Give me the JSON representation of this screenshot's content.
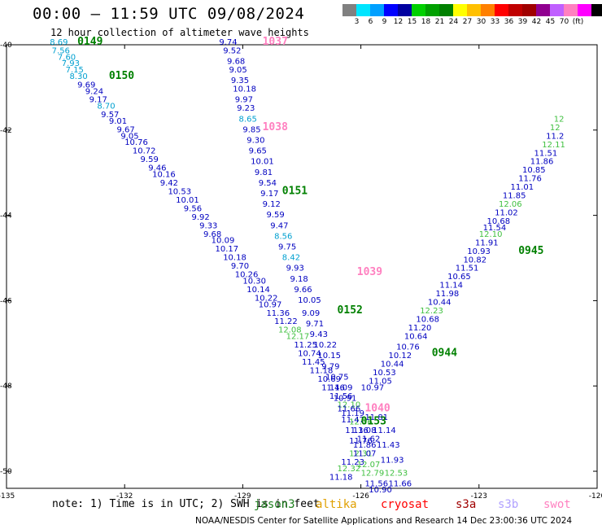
{
  "title": "00:00 – 11:59 UTC 09/08/2024",
  "subtitle": "12 hour collection of altimeter wave heights",
  "scale": {
    "unit": "(ft)",
    "colors": [
      "#808080",
      "#00e5ff",
      "#00a0ff",
      "#0000ff",
      "#0000a0",
      "#00d000",
      "#00a000",
      "#008000",
      "#ffff00",
      "#ffc000",
      "#ff8000",
      "#ff0000",
      "#c00000",
      "#a00000",
      "#900090",
      "#c060ff",
      "#ff80c0",
      "#ff00ff",
      "#000000"
    ],
    "labels": [
      "3",
      "6",
      "9",
      "12",
      "15",
      "18",
      "21",
      "24",
      "27",
      "30",
      "33",
      "36",
      "39",
      "42",
      "45",
      "70",
      "(ft)"
    ]
  },
  "axes": {
    "lat_ticks": [
      "-40",
      "-42",
      "-44",
      "-46",
      "-48",
      "-50"
    ],
    "lon_ticks": [
      "-135",
      "-132",
      "-129",
      "-126",
      "-123",
      "-120"
    ]
  },
  "tracks": [
    {
      "pass": "0149",
      "lon": -133.2,
      "lat": -40.0
    },
    {
      "pass": "0150",
      "lon": -132.4,
      "lat": -40.8
    },
    {
      "pass": "0151",
      "lon": -128.0,
      "lat": -43.5
    },
    {
      "pass": "0152",
      "lon": -126.6,
      "lat": -46.3
    },
    {
      "pass": "1037",
      "lon": -128.5,
      "lat": -40.0
    },
    {
      "pass": "1038",
      "lon": -128.5,
      "lat": -42.0
    },
    {
      "pass": "1039",
      "lon": -126.1,
      "lat": -45.4
    },
    {
      "pass": "1040",
      "lon": -125.9,
      "lat": -48.6
    },
    {
      "pass": "0153",
      "lon": -126.0,
      "lat": -48.9
    },
    {
      "pass": "0944",
      "lon": -124.2,
      "lat": -47.3
    },
    {
      "pass": "0945",
      "lon": -122.0,
      "lat": -44.9
    }
  ],
  "values": [
    {
      "t": "8.69",
      "lon": -133.9,
      "lat": -40.0,
      "c": "#00a0d0"
    },
    {
      "t": "7.56",
      "lon": -133.85,
      "lat": -40.2,
      "c": "#00a0d0"
    },
    {
      "t": "7.60",
      "lon": -133.7,
      "lat": -40.35,
      "c": "#00a0d0"
    },
    {
      "t": "7.93",
      "lon": -133.6,
      "lat": -40.5,
      "c": "#00a0d0"
    },
    {
      "t": "7.15",
      "lon": -133.5,
      "lat": -40.65,
      "c": "#00a0d0"
    },
    {
      "t": "8.30",
      "lon": -133.4,
      "lat": -40.8,
      "c": "#00a0d0"
    },
    {
      "t": "9.69",
      "lon": -133.2,
      "lat": -41.0,
      "c": "#0000c0"
    },
    {
      "t": "9.24",
      "lon": -133.0,
      "lat": -41.15,
      "c": "#0000c0"
    },
    {
      "t": "9.17",
      "lon": -132.9,
      "lat": -41.35,
      "c": "#0000c0"
    },
    {
      "t": "8.70",
      "lon": -132.7,
      "lat": -41.5,
      "c": "#00a0d0"
    },
    {
      "t": "9.57",
      "lon": -132.6,
      "lat": -41.7,
      "c": "#0000c0"
    },
    {
      "t": "9.01",
      "lon": -132.4,
      "lat": -41.85,
      "c": "#0000c0"
    },
    {
      "t": "9.67",
      "lon": -132.2,
      "lat": -42.05,
      "c": "#0000c0"
    },
    {
      "t": "9.05",
      "lon": -132.1,
      "lat": -42.2,
      "c": "#0000c0"
    },
    {
      "t": "10.76",
      "lon": -132.0,
      "lat": -42.35,
      "c": "#0000c0"
    },
    {
      "t": "10.72",
      "lon": -131.8,
      "lat": -42.55,
      "c": "#0000c0"
    },
    {
      "t": "9.59",
      "lon": -131.6,
      "lat": -42.75,
      "c": "#0000c0"
    },
    {
      "t": "9.46",
      "lon": -131.4,
      "lat": -42.95,
      "c": "#0000c0"
    },
    {
      "t": "10.16",
      "lon": -131.3,
      "lat": -43.1,
      "c": "#0000c0"
    },
    {
      "t": "9.42",
      "lon": -131.1,
      "lat": -43.3,
      "c": "#0000c0"
    },
    {
      "t": "10.53",
      "lon": -130.9,
      "lat": -43.5,
      "c": "#0000c0"
    },
    {
      "t": "10.01",
      "lon": -130.7,
      "lat": -43.7,
      "c": "#0000c0"
    },
    {
      "t": "9.56",
      "lon": -130.5,
      "lat": -43.9,
      "c": "#0000c0"
    },
    {
      "t": "9.92",
      "lon": -130.3,
      "lat": -44.1,
      "c": "#0000c0"
    },
    {
      "t": "9.33",
      "lon": -130.1,
      "lat": -44.3,
      "c": "#0000c0"
    },
    {
      "t": "9.68",
      "lon": -130.0,
      "lat": -44.5,
      "c": "#0000c0"
    },
    {
      "t": "10.09",
      "lon": -129.8,
      "lat": -44.65,
      "c": "#0000c0"
    },
    {
      "t": "10.17",
      "lon": -129.7,
      "lat": -44.85,
      "c": "#0000c0"
    },
    {
      "t": "10.18",
      "lon": -129.5,
      "lat": -45.05,
      "c": "#0000c0"
    },
    {
      "t": "9.70",
      "lon": -129.3,
      "lat": -45.25,
      "c": "#0000c0"
    },
    {
      "t": "10.26",
      "lon": -129.2,
      "lat": -45.45,
      "c": "#0000c0"
    },
    {
      "t": "10.30",
      "lon": -129.0,
      "lat": -45.6,
      "c": "#0000c0"
    },
    {
      "t": "10.14",
      "lon": -128.9,
      "lat": -45.8,
      "c": "#0000c0"
    },
    {
      "t": "10.22",
      "lon": -128.7,
      "lat": -46.0,
      "c": "#0000c0"
    },
    {
      "t": "10.97",
      "lon": -128.6,
      "lat": -46.15,
      "c": "#0000c0"
    },
    {
      "t": "11.36",
      "lon": -128.4,
      "lat": -46.35,
      "c": "#0000c0"
    },
    {
      "t": "11.22",
      "lon": -128.2,
      "lat": -46.55,
      "c": "#0000c0"
    },
    {
      "t": "12.08",
      "lon": -128.1,
      "lat": -46.75,
      "c": "#40c040"
    },
    {
      "t": "12.17",
      "lon": -127.9,
      "lat": -46.9,
      "c": "#40c040"
    },
    {
      "t": "11.25",
      "lon": -127.7,
      "lat": -47.1,
      "c": "#0000c0"
    },
    {
      "t": "10.74",
      "lon": -127.6,
      "lat": -47.3,
      "c": "#0000c0"
    },
    {
      "t": "11.45",
      "lon": -127.5,
      "lat": -47.5,
      "c": "#0000c0"
    },
    {
      "t": "11.18",
      "lon": -127.3,
      "lat": -47.7,
      "c": "#0000c0"
    },
    {
      "t": "10.69",
      "lon": -127.1,
      "lat": -47.9,
      "c": "#0000c0"
    },
    {
      "t": "11.46",
      "lon": -127.0,
      "lat": -48.1,
      "c": "#0000c0"
    },
    {
      "t": "11.56",
      "lon": -126.8,
      "lat": -48.3,
      "c": "#0000c0"
    },
    {
      "t": "12.10",
      "lon": -126.6,
      "lat": -48.5,
      "c": "#40c040"
    },
    {
      "t": "11.19",
      "lon": -126.5,
      "lat": -48.7,
      "c": "#0000c0"
    },
    {
      "t": "12.36",
      "lon": -126.3,
      "lat": -48.9,
      "c": "#40c040"
    },
    {
      "t": "11.08",
      "lon": -126.2,
      "lat": -49.1,
      "c": "#0000c0"
    },
    {
      "t": "11.62",
      "lon": -126.1,
      "lat": -49.3,
      "c": "#0000c0"
    },
    {
      "t": "11.86",
      "lon": -126.2,
      "lat": -49.45,
      "c": "#0000c0"
    },
    {
      "t": "12.31",
      "lon": -126.3,
      "lat": -49.65,
      "c": "#40c040"
    },
    {
      "t": "11.23",
      "lon": -126.5,
      "lat": -49.85,
      "c": "#0000c0"
    },
    {
      "t": "12.32",
      "lon": -126.6,
      "lat": -50.0,
      "c": "#40c040"
    },
    {
      "t": "11.18",
      "lon": -126.8,
      "lat": -50.2,
      "c": "#0000c0"
    },
    {
      "t": "9.74",
      "lon": -129.6,
      "lat": -40.0,
      "c": "#0000c0"
    },
    {
      "t": "9.52",
      "lon": -129.5,
      "lat": -40.2,
      "c": "#0000c0"
    },
    {
      "t": "9.68",
      "lon": -129.4,
      "lat": -40.45,
      "c": "#0000c0"
    },
    {
      "t": "9.05",
      "lon": -129.35,
      "lat": -40.65,
      "c": "#0000c0"
    },
    {
      "t": "9.35",
      "lon": -129.3,
      "lat": -40.9,
      "c": "#0000c0"
    },
    {
      "t": "10.18",
      "lon": -129.25,
      "lat": -41.1,
      "c": "#0000c0"
    },
    {
      "t": "9.97",
      "lon": -129.2,
      "lat": -41.35,
      "c": "#0000c0"
    },
    {
      "t": "9.23",
      "lon": -129.15,
      "lat": -41.55,
      "c": "#0000c0"
    },
    {
      "t": "8.65",
      "lon": -129.1,
      "lat": -41.8,
      "c": "#00a0d0"
    },
    {
      "t": "9.85",
      "lon": -129.0,
      "lat": -42.05,
      "c": "#0000c0"
    },
    {
      "t": "9.30",
      "lon": -128.9,
      "lat": -42.3,
      "c": "#0000c0"
    },
    {
      "t": "9.65",
      "lon": -128.85,
      "lat": -42.55,
      "c": "#0000c0"
    },
    {
      "t": "10.01",
      "lon": -128.8,
      "lat": -42.8,
      "c": "#0000c0"
    },
    {
      "t": "9.81",
      "lon": -128.7,
      "lat": -43.05,
      "c": "#0000c0"
    },
    {
      "t": "9.54",
      "lon": -128.6,
      "lat": -43.3,
      "c": "#0000c0"
    },
    {
      "t": "9.17",
      "lon": -128.55,
      "lat": -43.55,
      "c": "#0000c0"
    },
    {
      "t": "9.12",
      "lon": -128.5,
      "lat": -43.8,
      "c": "#0000c0"
    },
    {
      "t": "9.59",
      "lon": -128.4,
      "lat": -44.05,
      "c": "#0000c0"
    },
    {
      "t": "9.47",
      "lon": -128.3,
      "lat": -44.3,
      "c": "#0000c0"
    },
    {
      "t": "8.56",
      "lon": -128.2,
      "lat": -44.55,
      "c": "#00a0d0"
    },
    {
      "t": "9.75",
      "lon": -128.1,
      "lat": -44.8,
      "c": "#0000c0"
    },
    {
      "t": "8.42",
      "lon": -128.0,
      "lat": -45.05,
      "c": "#00a0d0"
    },
    {
      "t": "9.93",
      "lon": -127.9,
      "lat": -45.3,
      "c": "#0000c0"
    },
    {
      "t": "9.18",
      "lon": -127.8,
      "lat": -45.55,
      "c": "#0000c0"
    },
    {
      "t": "9.66",
      "lon": -127.7,
      "lat": -45.8,
      "c": "#0000c0"
    },
    {
      "t": "10.05",
      "lon": -127.6,
      "lat": -46.05,
      "c": "#0000c0"
    },
    {
      "t": "9.09",
      "lon": -127.5,
      "lat": -46.35,
      "c": "#0000c0"
    },
    {
      "t": "9.71",
      "lon": -127.4,
      "lat": -46.6,
      "c": "#0000c0"
    },
    {
      "t": "9.43",
      "lon": -127.3,
      "lat": -46.85,
      "c": "#0000c0"
    },
    {
      "t": "10.22",
      "lon": -127.2,
      "lat": -47.1,
      "c": "#0000c0"
    },
    {
      "t": "10.15",
      "lon": -127.1,
      "lat": -47.35,
      "c": "#0000c0"
    },
    {
      "t": "9.79",
      "lon": -127.0,
      "lat": -47.6,
      "c": "#0000c0"
    },
    {
      "t": "10.75",
      "lon": -126.9,
      "lat": -47.85,
      "c": "#0000c0"
    },
    {
      "t": "11.09",
      "lon": -126.8,
      "lat": -48.1,
      "c": "#0000c0"
    },
    {
      "t": "10.91",
      "lon": -126.7,
      "lat": -48.35,
      "c": "#0000c0"
    },
    {
      "t": "11.66",
      "lon": -126.6,
      "lat": -48.6,
      "c": "#0000c0"
    },
    {
      "t": "11.47",
      "lon": -126.5,
      "lat": -48.85,
      "c": "#0000c0"
    },
    {
      "t": "11.36",
      "lon": -126.4,
      "lat": -49.1,
      "c": "#0000c0"
    },
    {
      "t": "11.76",
      "lon": -126.3,
      "lat": -49.35,
      "c": "#0000c0"
    },
    {
      "t": "11.07",
      "lon": -126.2,
      "lat": -49.65,
      "c": "#0000c0"
    },
    {
      "t": "12.07",
      "lon": -126.1,
      "lat": -49.9,
      "c": "#40c040"
    },
    {
      "t": "12.79",
      "lon": -126.0,
      "lat": -50.1,
      "c": "#40c040"
    },
    {
      "t": "11.56",
      "lon": -125.9,
      "lat": -50.35,
      "c": "#0000c0"
    },
    {
      "t": "10.90",
      "lon": -125.8,
      "lat": -50.5,
      "c": "#0000c0"
    },
    {
      "t": "11.66",
      "lon": -125.3,
      "lat": -50.35,
      "c": "#0000c0"
    },
    {
      "t": "12.53",
      "lon": -125.4,
      "lat": -50.1,
      "c": "#40c040"
    },
    {
      "t": "11.93",
      "lon": -125.5,
      "lat": -49.8,
      "c": "#0000c0"
    },
    {
      "t": "11.43",
      "lon": -125.6,
      "lat": -49.45,
      "c": "#0000c0"
    },
    {
      "t": "11.14",
      "lon": -125.7,
      "lat": -49.1,
      "c": "#0000c0"
    },
    {
      "t": "11.81",
      "lon": -125.9,
      "lat": -48.8,
      "c": "#0000c0"
    },
    {
      "t": "10.97",
      "lon": -126.0,
      "lat": -48.1,
      "c": "#0000c0"
    },
    {
      "t": "11.05",
      "lon": -125.8,
      "lat": -47.95,
      "c": "#0000c0"
    },
    {
      "t": "10.53",
      "lon": -125.7,
      "lat": -47.75,
      "c": "#0000c0"
    },
    {
      "t": "10.44",
      "lon": -125.5,
      "lat": -47.55,
      "c": "#0000c0"
    },
    {
      "t": "10.12",
      "lon": -125.3,
      "lat": -47.35,
      "c": "#0000c0"
    },
    {
      "t": "10.76",
      "lon": -125.1,
      "lat": -47.15,
      "c": "#0000c0"
    },
    {
      "t": "10.64",
      "lon": -124.9,
      "lat": -46.9,
      "c": "#0000c0"
    },
    {
      "t": "11.20",
      "lon": -124.8,
      "lat": -46.7,
      "c": "#0000c0"
    },
    {
      "t": "10.68",
      "lon": -124.6,
      "lat": -46.5,
      "c": "#0000c0"
    },
    {
      "t": "12.23",
      "lon": -124.5,
      "lat": -46.3,
      "c": "#40c040"
    },
    {
      "t": "10.44",
      "lon": -124.3,
      "lat": -46.1,
      "c": "#0000c0"
    },
    {
      "t": "11.98",
      "lon": -124.1,
      "lat": -45.9,
      "c": "#0000c0"
    },
    {
      "t": "11.14",
      "lon": -124.0,
      "lat": -45.7,
      "c": "#0000c0"
    },
    {
      "t": "10.65",
      "lon": -123.8,
      "lat": -45.5,
      "c": "#0000c0"
    },
    {
      "t": "11.51",
      "lon": -123.6,
      "lat": -45.3,
      "c": "#0000c0"
    },
    {
      "t": "10.82",
      "lon": -123.4,
      "lat": -45.1,
      "c": "#0000c0"
    },
    {
      "t": "10.93",
      "lon": -123.3,
      "lat": -44.9,
      "c": "#0000c0"
    },
    {
      "t": "11.91",
      "lon": -123.1,
      "lat": -44.7,
      "c": "#0000c0"
    },
    {
      "t": "12.10",
      "lon": -123.0,
      "lat": -44.5,
      "c": "#40c040"
    },
    {
      "t": "11.54",
      "lon": -122.9,
      "lat": -44.35,
      "c": "#0000c0"
    },
    {
      "t": "10.68",
      "lon": -122.8,
      "lat": -44.2,
      "c": "#0000c0"
    },
    {
      "t": "11.02",
      "lon": -122.6,
      "lat": -44.0,
      "c": "#0000c0"
    },
    {
      "t": "12.06",
      "lon": -122.5,
      "lat": -43.8,
      "c": "#40c040"
    },
    {
      "t": "11.85",
      "lon": -122.4,
      "lat": -43.6,
      "c": "#0000c0"
    },
    {
      "t": "11.01",
      "lon": -122.2,
      "lat": -43.4,
      "c": "#0000c0"
    },
    {
      "t": "11.76",
      "lon": -122.0,
      "lat": -43.2,
      "c": "#0000c0"
    },
    {
      "t": "10.85",
      "lon": -121.9,
      "lat": -43.0,
      "c": "#0000c0"
    },
    {
      "t": "11.86",
      "lon": -121.7,
      "lat": -42.8,
      "c": "#0000c0"
    },
    {
      "t": "11.51",
      "lon": -121.6,
      "lat": -42.6,
      "c": "#0000c0"
    },
    {
      "t": "12.11",
      "lon": -121.4,
      "lat": -42.4,
      "c": "#40c040"
    },
    {
      "t": "11.2",
      "lon": -121.3,
      "lat": -42.2,
      "c": "#0000c0"
    },
    {
      "t": "12",
      "lon": -121.2,
      "lat": -42.0,
      "c": "#40c040"
    },
    {
      "t": "12",
      "lon": -121.1,
      "lat": -41.8,
      "c": "#40c040"
    }
  ],
  "note": "note:  1) Time is in UTC; 2) SWH is in feet",
  "satellites": [
    {
      "name": "jason3",
      "color": "#208020"
    },
    {
      "name": "altika",
      "color": "#e0a000"
    },
    {
      "name": "cryosat",
      "color": "#ff0000"
    },
    {
      "name": "s3a",
      "color": "#a00000"
    },
    {
      "name": "s3b",
      "color": "#b0a0ff"
    },
    {
      "name": "swot",
      "color": "#ff80c0"
    }
  ],
  "footer": "NOAA/NESDIS Center for Satellite Applications and Research    14 Dec 23:00:36 UTC 2024"
}
